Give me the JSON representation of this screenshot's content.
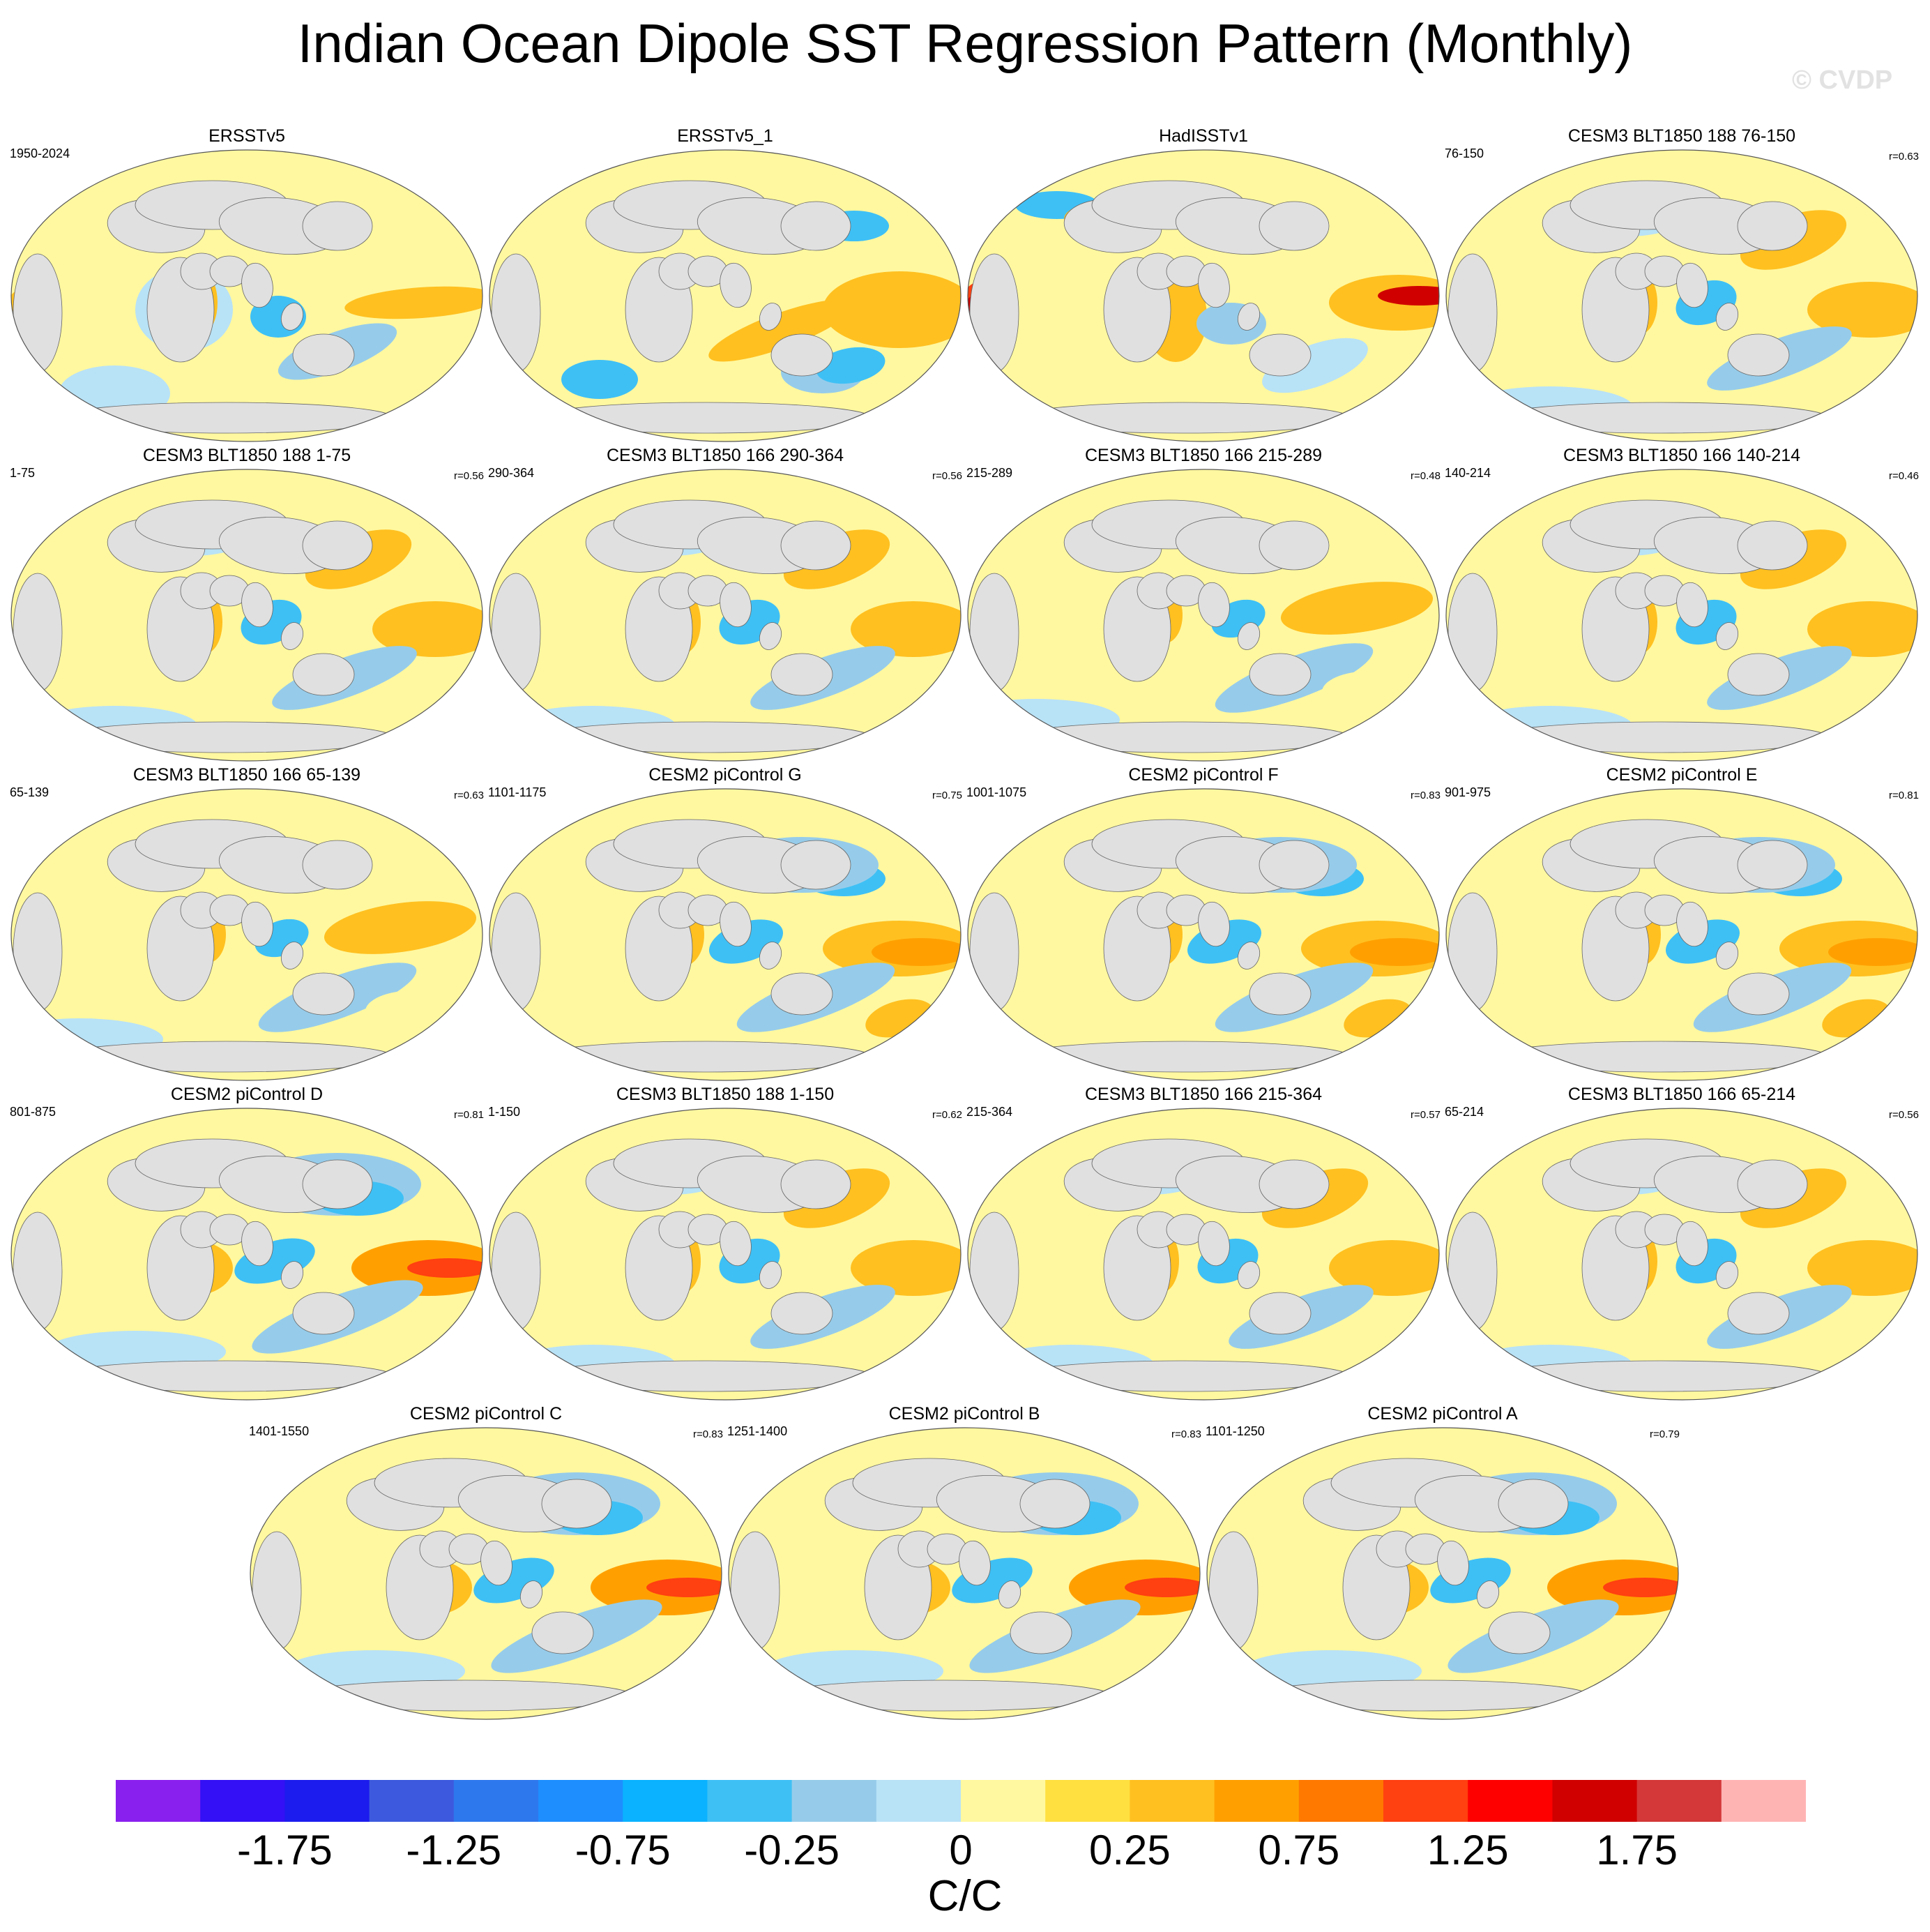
{
  "title": "Indian Ocean Dipole SST Regression Pattern (Monthly)",
  "watermark": "© CVDP",
  "panels": [
    {
      "name": "ERSSTv5",
      "years": "1950-2024",
      "r": "",
      "pat": 0
    },
    {
      "name": "ERSSTv5_1",
      "years": "",
      "r": "",
      "pat": 1
    },
    {
      "name": "HadISSTv1",
      "years": "",
      "r": "",
      "pat": 2
    },
    {
      "name": "CESM3 BLT1850 188 76-150",
      "years": "76-150",
      "r": "r=0.63",
      "pat": 3
    },
    {
      "name": "CESM3 BLT1850 188 1-75",
      "years": "1-75",
      "r": "r=0.56",
      "pat": 3
    },
    {
      "name": "CESM3 BLT1850 166 290-364",
      "years": "290-364",
      "r": "r=0.56",
      "pat": 3
    },
    {
      "name": "CESM3 BLT1850 166 215-289",
      "years": "215-289",
      "r": "r=0.48",
      "pat": 4
    },
    {
      "name": "CESM3 BLT1850 166 140-214",
      "years": "140-214",
      "r": "r=0.46",
      "pat": 3
    },
    {
      "name": "CESM3 BLT1850 166 65-139",
      "years": "65-139",
      "r": "r=0.63",
      "pat": 4
    },
    {
      "name": "CESM2 piControl G",
      "years": "1101-1175",
      "r": "r=0.75",
      "pat": 5
    },
    {
      "name": "CESM2 piControl F",
      "years": "1001-1075",
      "r": "r=0.83",
      "pat": 5
    },
    {
      "name": "CESM2 piControl E",
      "years": "901-975",
      "r": "r=0.81",
      "pat": 5
    },
    {
      "name": "CESM2 piControl D",
      "years": "801-875",
      "r": "r=0.81",
      "pat": 6
    },
    {
      "name": "CESM3 BLT1850 188 1-150",
      "years": "1-150",
      "r": "r=0.62",
      "pat": 3
    },
    {
      "name": "CESM3 BLT1850 166 215-364",
      "years": "215-364",
      "r": "r=0.57",
      "pat": 3
    },
    {
      "name": "CESM3 BLT1850 166 65-214",
      "years": "65-214",
      "r": "r=0.56",
      "pat": 3
    },
    {
      "name": "CESM2 piControl C",
      "years": "1401-1550",
      "r": "r=0.83",
      "pat": 6
    },
    {
      "name": "CESM2 piControl B",
      "years": "1251-1400",
      "r": "r=0.83",
      "pat": 6
    },
    {
      "name": "CESM2 piControl A",
      "years": "1101-1250",
      "r": "r=0.79",
      "pat": 6
    }
  ],
  "colorbar": {
    "colors": [
      "#8a20ee",
      "#3310f5",
      "#1c1cee",
      "#3d5ade",
      "#2e78ee",
      "#1e8eff",
      "#0ab2ff",
      "#3ec0f5",
      "#96ccea",
      "#b8e2f6",
      "#fff8a0",
      "#ffe040",
      "#ffc020",
      "#ffa000",
      "#ff7800",
      "#ff4010",
      "#ff0000",
      "#d00000",
      "#d43838",
      "#ffb4b4"
    ],
    "tick_labels": [
      "-1.75",
      "-1.25",
      "-0.75",
      "-0.25",
      "0",
      "0.25",
      "0.75",
      "1.25",
      "1.75"
    ],
    "units": "C/C"
  }
}
